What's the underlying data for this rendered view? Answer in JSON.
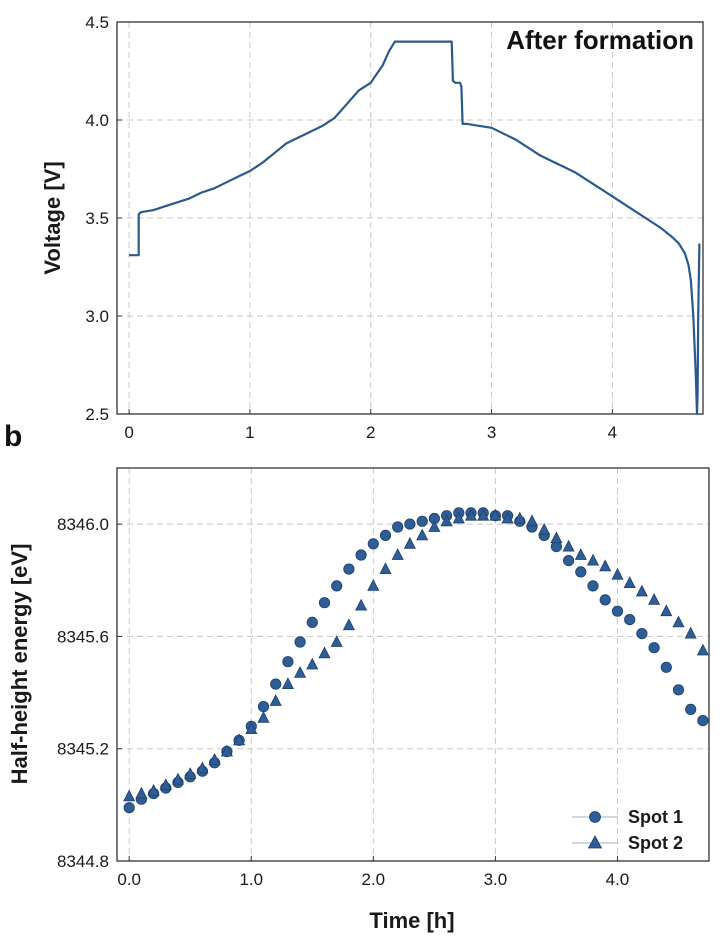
{
  "panel_label_b": "b",
  "chart_data": [
    {
      "type": "line",
      "title": "After formation",
      "xlabel": "",
      "ylabel": "Voltage [V]",
      "xlim": [
        -0.1,
        4.75
      ],
      "ylim": [
        2.5,
        4.5
      ],
      "xticks": [
        0,
        1,
        2,
        3,
        4
      ],
      "xtick_labels": [
        "0",
        "1",
        "2",
        "3",
        "4"
      ],
      "yticks": [
        2.5,
        3.0,
        3.5,
        4.0,
        4.5
      ],
      "ytick_labels": [
        "2.5",
        "3.0",
        "3.5",
        "4.0",
        "4.5"
      ],
      "color": "#2a5a8c",
      "series": [
        {
          "name": "Voltage",
          "x": [
            0.0,
            0.08,
            0.08,
            0.1,
            0.2,
            0.3,
            0.4,
            0.5,
            0.6,
            0.7,
            0.8,
            0.9,
            1.0,
            1.1,
            1.2,
            1.3,
            1.4,
            1.5,
            1.6,
            1.7,
            1.8,
            1.9,
            2.0,
            2.1,
            2.15,
            2.2,
            2.3,
            2.5,
            2.67,
            2.68,
            2.7,
            2.74,
            2.75,
            2.76,
            2.77,
            2.8,
            2.9,
            3.0,
            3.1,
            3.2,
            3.3,
            3.4,
            3.5,
            3.6,
            3.7,
            3.8,
            3.9,
            4.0,
            4.1,
            4.2,
            4.3,
            4.4,
            4.5,
            4.55,
            4.6,
            4.63,
            4.65,
            4.67,
            4.69,
            4.7,
            4.705,
            4.71,
            4.72
          ],
          "y": [
            3.31,
            3.31,
            3.52,
            3.53,
            3.54,
            3.56,
            3.58,
            3.6,
            3.63,
            3.65,
            3.68,
            3.71,
            3.74,
            3.78,
            3.83,
            3.88,
            3.91,
            3.94,
            3.97,
            4.01,
            4.08,
            4.15,
            4.19,
            4.28,
            4.35,
            4.4,
            4.4,
            4.4,
            4.4,
            4.2,
            4.19,
            4.19,
            4.17,
            3.98,
            3.98,
            3.98,
            3.97,
            3.96,
            3.93,
            3.9,
            3.86,
            3.82,
            3.79,
            3.76,
            3.73,
            3.69,
            3.65,
            3.61,
            3.57,
            3.53,
            3.49,
            3.45,
            3.4,
            3.37,
            3.32,
            3.26,
            3.18,
            3.0,
            2.7,
            2.5,
            2.6,
            3.0,
            3.37
          ]
        }
      ]
    },
    {
      "type": "scatter",
      "title": "",
      "xlabel": "Time [h]",
      "ylabel": "Half-height energy [eV]",
      "xlim": [
        -0.1,
        4.75
      ],
      "ylim": [
        8344.8,
        8346.2
      ],
      "xticks": [
        0,
        1,
        2,
        3,
        4
      ],
      "xtick_labels": [
        "0.0",
        "1.0",
        "2.0",
        "3.0",
        "4.0"
      ],
      "yticks": [
        8344.8,
        8345.2,
        8345.6,
        8346.0
      ],
      "ytick_labels": [
        "8344.8",
        "8345.2",
        "8345.6",
        "8346.0"
      ],
      "legend_position": "bottom-right",
      "color": "#2f5d96",
      "series": [
        {
          "name": "Spot 1",
          "marker": "circle",
          "x": [
            0.0,
            0.1,
            0.2,
            0.3,
            0.4,
            0.5,
            0.6,
            0.7,
            0.8,
            0.9,
            1.0,
            1.1,
            1.2,
            1.3,
            1.4,
            1.5,
            1.6,
            1.7,
            1.8,
            1.9,
            2.0,
            2.1,
            2.2,
            2.3,
            2.4,
            2.5,
            2.6,
            2.7,
            2.8,
            2.9,
            3.0,
            3.1,
            3.2,
            3.3,
            3.4,
            3.5,
            3.6,
            3.7,
            3.8,
            3.9,
            4.0,
            4.1,
            4.2,
            4.3,
            4.4,
            4.5,
            4.6,
            4.7
          ],
          "y": [
            8344.99,
            8345.02,
            8345.04,
            8345.06,
            8345.08,
            8345.1,
            8345.12,
            8345.15,
            8345.19,
            8345.23,
            8345.28,
            8345.35,
            8345.43,
            8345.51,
            8345.58,
            8345.65,
            8345.72,
            8345.78,
            8345.84,
            8345.89,
            8345.93,
            8345.96,
            8345.99,
            8346.0,
            8346.01,
            8346.02,
            8346.03,
            8346.04,
            8346.04,
            8346.04,
            8346.03,
            8346.03,
            8346.01,
            8345.99,
            8345.96,
            8345.92,
            8345.87,
            8345.83,
            8345.78,
            8345.73,
            8345.69,
            8345.66,
            8345.61,
            8345.56,
            8345.49,
            8345.41,
            8345.34,
            8345.3
          ]
        },
        {
          "name": "Spot 2",
          "marker": "triangle",
          "x": [
            0.0,
            0.1,
            0.2,
            0.3,
            0.4,
            0.5,
            0.6,
            0.7,
            0.8,
            0.9,
            1.0,
            1.1,
            1.2,
            1.3,
            1.4,
            1.5,
            1.6,
            1.7,
            1.8,
            1.9,
            2.0,
            2.1,
            2.2,
            2.3,
            2.4,
            2.5,
            2.6,
            2.7,
            2.8,
            2.9,
            3.0,
            3.1,
            3.2,
            3.3,
            3.4,
            3.5,
            3.6,
            3.7,
            3.8,
            3.9,
            4.0,
            4.1,
            4.2,
            4.3,
            4.4,
            4.5,
            4.6,
            4.7
          ],
          "y": [
            8345.03,
            8345.04,
            8345.05,
            8345.07,
            8345.09,
            8345.11,
            8345.13,
            8345.16,
            8345.19,
            8345.23,
            8345.27,
            8345.31,
            8345.37,
            8345.43,
            8345.47,
            8345.5,
            8345.54,
            8345.58,
            8345.64,
            8345.71,
            8345.78,
            8345.84,
            8345.89,
            8345.93,
            8345.96,
            8345.99,
            8346.01,
            8346.02,
            8346.03,
            8346.03,
            8346.03,
            8346.02,
            8346.02,
            8346.01,
            8345.98,
            8345.95,
            8345.92,
            8345.89,
            8345.87,
            8345.85,
            8345.82,
            8345.79,
            8345.76,
            8345.73,
            8345.69,
            8345.65,
            8345.61,
            8345.55
          ]
        }
      ]
    }
  ]
}
